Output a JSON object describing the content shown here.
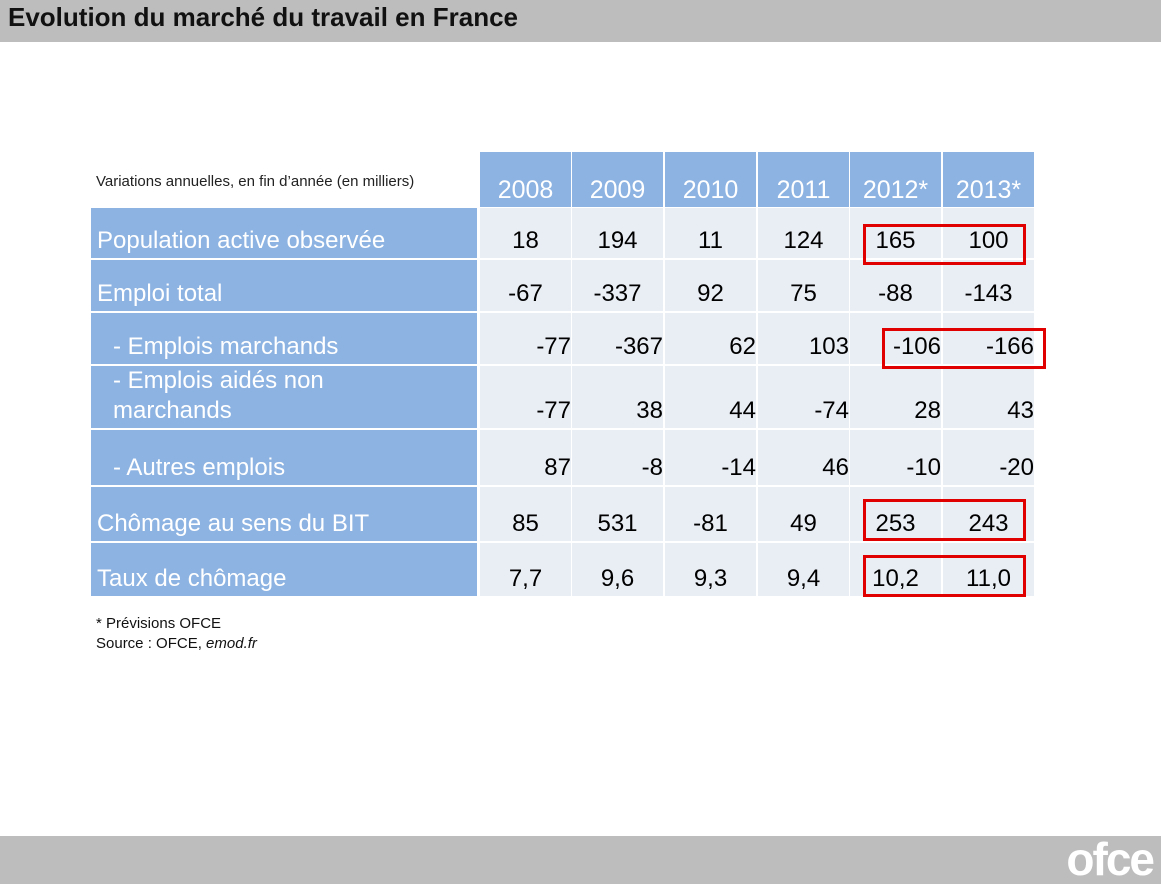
{
  "header": {
    "title": "Evolution du marché du travail en France"
  },
  "table": {
    "caption": "Variations annuelles, en fin d’année (en milliers)",
    "columns": [
      "2008",
      "2009",
      "2010",
      "2011",
      "2012*",
      "2013*"
    ],
    "rows": [
      {
        "label": "Population active observée",
        "values": [
          "18",
          "194",
          "11",
          "124",
          "165",
          "100"
        ]
      },
      {
        "label": "Emploi total",
        "values": [
          "-67",
          "-337",
          "92",
          "75",
          "-88",
          "-143"
        ]
      },
      {
        "label": "- Emplois marchands",
        "values": [
          "-77",
          "-367",
          "62",
          "103",
          "-106",
          "-166"
        ]
      },
      {
        "label": [
          "- Emplois aidés non",
          "marchands"
        ],
        "values": [
          "-77",
          "38",
          "44",
          "-74",
          "28",
          "43"
        ]
      },
      {
        "label": "- Autres emplois",
        "values": [
          "87",
          "-8",
          "-14",
          "46",
          "-10",
          "-20"
        ]
      },
      {
        "label": "Chômage au sens du BIT",
        "values": [
          "85",
          "531",
          "-81",
          "49",
          "253",
          "243"
        ]
      },
      {
        "label": "Taux de chômage",
        "values": [
          "7,7",
          "9,6",
          "9,3",
          "9,4",
          "10,2",
          "11,0"
        ]
      }
    ]
  },
  "notes": {
    "forecast": "* Prévisions OFCE",
    "source": "Source : OFCE, ",
    "source_link": "emod.fr"
  },
  "footer": {
    "logo": "ofce"
  }
}
